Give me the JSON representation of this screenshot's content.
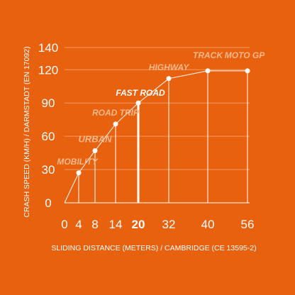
{
  "chart_data": {
    "type": "line",
    "xlabel": "SLIDING DISTANCE (METERS) / CAMBRIDGE (CE 13595-2)",
    "ylabel": "CRASH SPEED (KM/H) / DARMSTADT (EN 17092)",
    "x_ticks": [
      "0",
      "4",
      "8",
      "14",
      "20",
      "32",
      "40",
      "56"
    ],
    "y_ticks": [
      "0",
      "30",
      "60",
      "90",
      "120",
      "140"
    ],
    "ylim": [
      0,
      140
    ],
    "grid": true,
    "highlight_category": "20",
    "points": [
      {
        "x": "4",
        "y": 27,
        "label": "MOBILITY"
      },
      {
        "x": "8",
        "y": 47,
        "label": "URBAN"
      },
      {
        "x": "14",
        "y": 71,
        "label": "ROAD TRIP"
      },
      {
        "x": "20",
        "y": 90,
        "label": "FAST ROAD"
      },
      {
        "x": "32",
        "y": 112,
        "label": "HIGHWAY"
      },
      {
        "x": "40",
        "y": 119,
        "label": "TRACK"
      },
      {
        "x": "56",
        "y": 119,
        "label": "MOTO GP"
      }
    ],
    "colors": {
      "background": "#e8610f",
      "foreground": "#ffffff",
      "label": "#f7b88c",
      "grid": "#f19a62"
    }
  }
}
